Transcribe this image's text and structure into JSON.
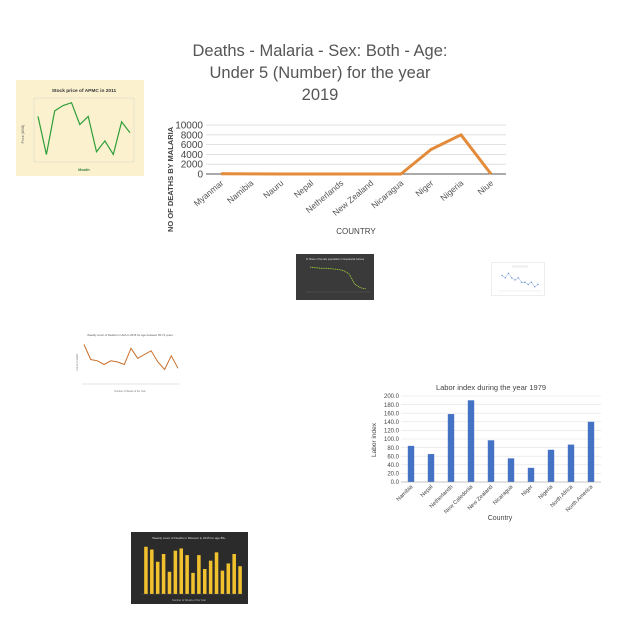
{
  "charts": {
    "malaria": {
      "type": "line",
      "title": "Deaths - Malaria - Sex: Both - Age: Under 5 (Number) for the year 2019",
      "title_lines": [
        "Deaths - Malaria - Sex: Both - Age:",
        "Under 5 (Number) for the year",
        "2019"
      ],
      "xlabel": "COUNTRY",
      "ylabel": "NO OF DEATHS BY MALARIA",
      "categories": [
        "Myanmar",
        "Namibia",
        "Nauru",
        "Nepal",
        "Netherlands",
        "New Zealand",
        "Nicaragua",
        "Niger",
        "Nigeria",
        "Niue"
      ],
      "values": [
        40,
        30,
        0,
        0,
        0,
        0,
        0,
        5000,
        8000,
        0
      ],
      "yticks": [
        0,
        2000,
        4000,
        6000,
        8000,
        10000
      ],
      "ylim": [
        0,
        10000
      ],
      "color": "#e38b3a",
      "grid": true
    },
    "labor": {
      "type": "bar",
      "title": "Labor index during the year 1979",
      "xlabel": "Country",
      "ylabel": "Labor index",
      "categories": [
        "Namibia",
        "Nepal",
        "Netherlands",
        "New Caledonia",
        "New Zealand",
        "Nicaragua",
        "Niger",
        "Nigeria",
        "North Africa",
        "North America"
      ],
      "values": [
        84,
        65,
        158,
        190,
        97,
        55,
        33,
        75,
        87,
        140
      ],
      "yticks": [
        "0.0",
        "20.0",
        "40.0",
        "60.0",
        "80.0",
        "100.0",
        "120.0",
        "140.0",
        "160.0",
        "180.0",
        "200.0"
      ],
      "ylim": [
        0,
        200
      ],
      "color": "#4472c4",
      "grid": true
    }
  },
  "thumbnails": {
    "stock": {
      "title": "Stock price of APMC in 2011",
      "xlabel": "Month",
      "ylabel": "Price (USD)",
      "values": [
        4.9,
        3.5,
        5.1,
        5.3,
        5.4,
        4.6,
        4.9,
        3.6,
        4.0,
        3.5,
        4.7,
        4.3
      ],
      "color": "#2e9e3a"
    },
    "female_share": {
      "title": "% Share of female population in Equatorial Guinea",
      "values": [
        50.8,
        50.7,
        50.6,
        50.6,
        50.5,
        50.4,
        50.2,
        49.6,
        47.8,
        47.2,
        47.0
      ],
      "color": "#a8d63a"
    },
    "scatter": {
      "values": [
        8,
        7,
        9,
        7,
        6,
        7,
        5,
        5,
        4,
        5,
        3,
        4
      ],
      "color": "#6a8fd6"
    },
    "weekly_line": {
      "title": "Weekly count of Deaths in Utah in 2015 for age between 65-74 years",
      "xlabel": "Number of Weeks of the Year",
      "ylabel": "Count of deaths",
      "values": [
        60,
        48,
        47,
        44,
        47,
        46,
        44,
        57,
        49,
        52,
        55,
        46,
        40,
        51,
        41
      ],
      "color": "#c96f2b"
    },
    "missouri_bars": {
      "title": "Weekly count of Deaths in Missouri in 2015 for age 85+",
      "xlabel": "Number of Weeks of the Year",
      "values": [
        85,
        80,
        58,
        72,
        40,
        78,
        82,
        70,
        38,
        70,
        45,
        60,
        75,
        42,
        55,
        72,
        50
      ],
      "color": "#f2c12e"
    }
  }
}
